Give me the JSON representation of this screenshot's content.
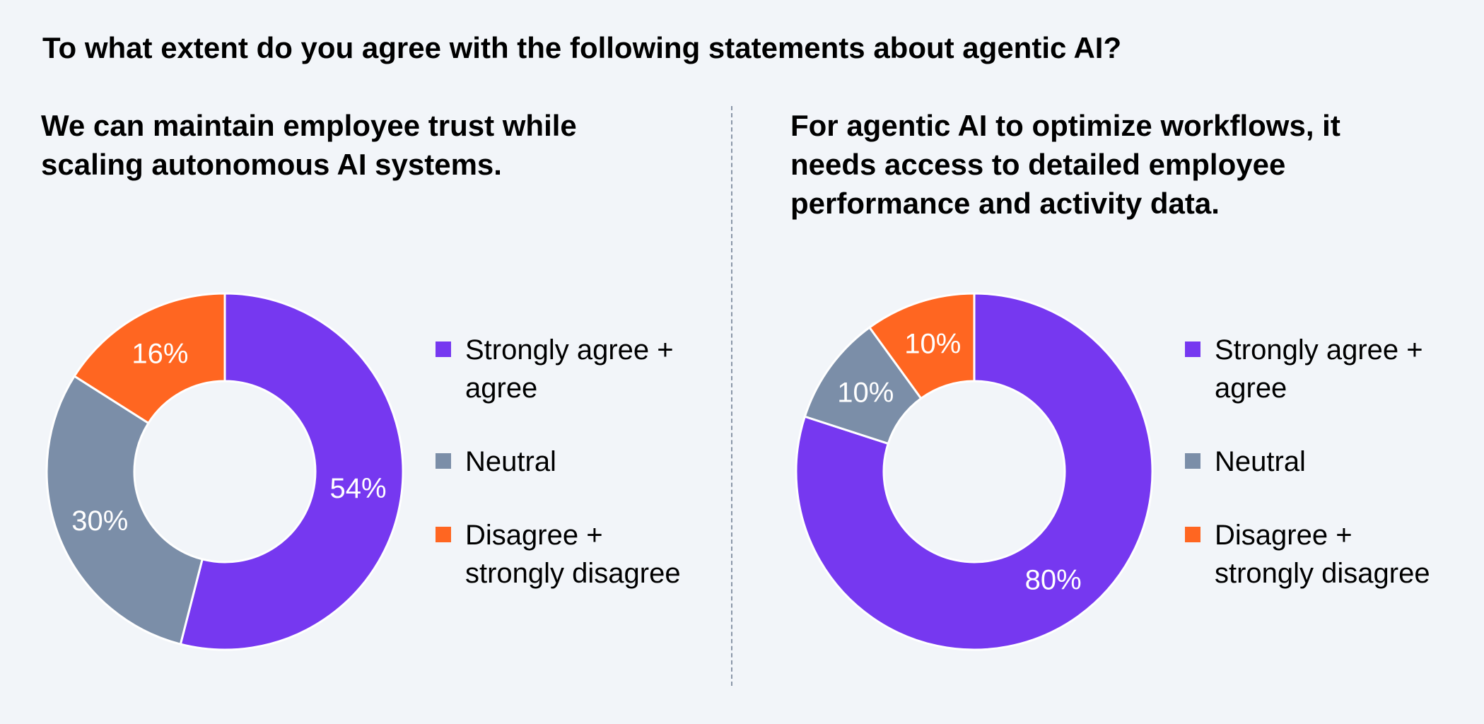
{
  "title": "To what extent do you agree with the following statements about agentic AI?",
  "colors": {
    "agree": "#7638f0",
    "neutral": "#7b8ea8",
    "disagree": "#ff6621",
    "divider": "#8a96a8",
    "background": "#f2f5f9"
  },
  "chart_data": [
    {
      "type": "pie",
      "title": "We can maintain employee trust while scaling autonomous AI systems.",
      "categories": [
        "Strongly agree + agree",
        "Neutral",
        "Disagree + strongly disagree"
      ],
      "values": [
        54,
        30,
        16
      ],
      "labels": [
        "54%",
        "30%",
        "16%"
      ],
      "colors": [
        "#7638f0",
        "#7b8ea8",
        "#ff6621"
      ],
      "donut": true,
      "legend": {
        "position": "right",
        "lines": [
          [
            "Strongly agree +",
            "agree"
          ],
          [
            "Neutral"
          ],
          [
            "Disagree +",
            "strongly disagree"
          ]
        ]
      }
    },
    {
      "type": "pie",
      "title": "For agentic AI to optimize workflows, it needs access to detailed employee performance and activity data.",
      "categories": [
        "Strongly agree + agree",
        "Neutral",
        "Disagree + strongly disagree"
      ],
      "values": [
        80,
        10,
        10
      ],
      "labels": [
        "80%",
        "10%",
        "10%"
      ],
      "colors": [
        "#7638f0",
        "#7b8ea8",
        "#ff6621"
      ],
      "donut": true,
      "legend": {
        "position": "right",
        "lines": [
          [
            "Strongly agree +",
            "agree"
          ],
          [
            "Neutral"
          ],
          [
            "Disagree +",
            "strongly disagree"
          ]
        ]
      }
    }
  ]
}
